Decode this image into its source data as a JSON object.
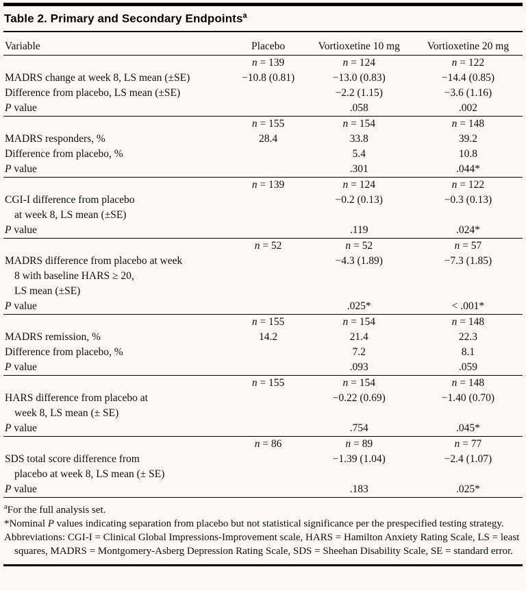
{
  "colors": {
    "ink": "#000000",
    "paper": "#fbfaf7"
  },
  "title": {
    "label": "Table 2. Primary and Secondary Endpoints",
    "superscript": "a"
  },
  "table": {
    "columns": [
      "Variable",
      "Placebo",
      "Vortioxetine 10 mg",
      "Vortioxetine 20 mg"
    ],
    "sections": [
      {
        "n": [
          "n = 139",
          "n = 124",
          "n = 122"
        ],
        "rows": [
          {
            "label_lines": [
              "MADRS change at week 8, LS mean (±SE)"
            ],
            "values": [
              "−10.8 (0.81)",
              "−13.0 (0.83)",
              "−14.4 (0.85)"
            ]
          },
          {
            "label_lines": [
              "Difference from placebo, LS mean (±SE)"
            ],
            "values": [
              "",
              "−2.2 (1.15)",
              "−3.6 (1.16)"
            ]
          },
          {
            "label_lines": [
              "P value"
            ],
            "italic_first": true,
            "values": [
              "",
              ".058",
              ".002"
            ]
          }
        ]
      },
      {
        "n": [
          "n = 155",
          "n = 154",
          "n = 148"
        ],
        "rows": [
          {
            "label_lines": [
              "MADRS responders, %"
            ],
            "values": [
              "28.4",
              "33.8",
              "39.2"
            ]
          },
          {
            "label_lines": [
              "Difference from placebo, %"
            ],
            "values": [
              "",
              "5.4",
              "10.8"
            ]
          },
          {
            "label_lines": [
              "P value"
            ],
            "italic_first": true,
            "values": [
              "",
              ".301",
              ".044*"
            ]
          }
        ]
      },
      {
        "n": [
          "n = 139",
          "n = 124",
          "n = 122"
        ],
        "rows": [
          {
            "label_lines": [
              "CGI-I difference from placebo",
              "at week 8, LS mean (±SE)"
            ],
            "values": [
              "",
              "−0.2 (0.13)",
              "−0.3 (0.13)"
            ]
          },
          {
            "label_lines": [
              "P value"
            ],
            "italic_first": true,
            "values": [
              "",
              ".119",
              ".024*"
            ]
          }
        ]
      },
      {
        "n": [
          "n = 52",
          "n = 52",
          "n = 57"
        ],
        "rows": [
          {
            "label_lines": [
              "MADRS difference from placebo at week",
              "8 with baseline HARS ≥ 20,",
              "LS mean (±SE)"
            ],
            "values": [
              "",
              "−4.3 (1.89)",
              "−7.3 (1.85)"
            ]
          },
          {
            "label_lines": [
              "P value"
            ],
            "italic_first": true,
            "values": [
              "",
              ".025*",
              "< .001*"
            ]
          }
        ]
      },
      {
        "n": [
          "n = 155",
          "n = 154",
          "n = 148"
        ],
        "rows": [
          {
            "label_lines": [
              "MADRS remission, %"
            ],
            "values": [
              "14.2",
              "21.4",
              "22.3"
            ]
          },
          {
            "label_lines": [
              "Difference from placebo, %"
            ],
            "values": [
              "",
              "7.2",
              "8.1"
            ]
          },
          {
            "label_lines": [
              "P value"
            ],
            "italic_first": true,
            "values": [
              "",
              ".093",
              ".059"
            ]
          }
        ]
      },
      {
        "n": [
          "n = 155",
          "n = 154",
          "n = 148"
        ],
        "rows": [
          {
            "label_lines": [
              "HARS difference from placebo at",
              "week 8, LS mean (± SE)"
            ],
            "values": [
              "",
              "−0.22 (0.69)",
              "−1.40 (0.70)"
            ]
          },
          {
            "label_lines": [
              "P value"
            ],
            "italic_first": true,
            "values": [
              "",
              ".754",
              ".045*"
            ]
          }
        ]
      },
      {
        "n": [
          "n = 86",
          "n = 89",
          "n = 77"
        ],
        "rows": [
          {
            "label_lines": [
              "SDS total score difference from",
              "placebo at week 8, LS mean (± SE)"
            ],
            "values": [
              "",
              "−1.39 (1.04)",
              "−2.4 (1.07)"
            ]
          },
          {
            "label_lines": [
              "P value"
            ],
            "italic_first": true,
            "values": [
              "",
              ".183",
              ".025*"
            ]
          }
        ]
      }
    ]
  },
  "footnotes": [
    {
      "hanging": false,
      "segments": [
        {
          "t": "a",
          "sup": true
        },
        {
          "t": "For the full analysis set."
        }
      ]
    },
    {
      "hanging": true,
      "segments": [
        {
          "t": "*Nominal "
        },
        {
          "t": "P",
          "it": true
        },
        {
          "t": " values indicating separation from placebo but not statistical significance per the prespecified testing strategy."
        }
      ]
    },
    {
      "hanging": true,
      "segments": [
        {
          "t": "Abbreviations: CGI-I = Clinical Global Impressions-Improvement scale, HARS = Hamilton Anxiety Rating Scale, LS = least squares, MADRS = Montgomery-Asberg Depression Rating Scale, SDS = Sheehan Disability Scale, SE = standard error."
        }
      ]
    }
  ]
}
